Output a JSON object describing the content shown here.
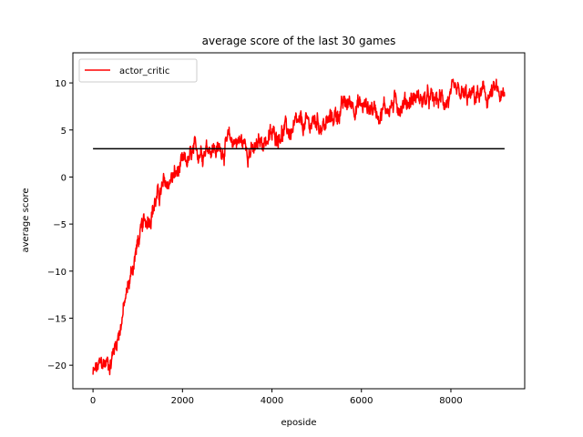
{
  "chart_data": {
    "type": "line",
    "title": "average score of the last 30 games",
    "xlabel": "eposide",
    "ylabel": "average score",
    "xlim": [
      -450,
      9650
    ],
    "ylim": [
      -22.5,
      13.2
    ],
    "xticks": [
      0,
      2000,
      4000,
      6000,
      8000
    ],
    "yticks": [
      -20,
      -15,
      -10,
      -5,
      0,
      5,
      10
    ],
    "grid": false,
    "legend": {
      "placement": "top-left",
      "entries": [
        "actor_critic"
      ]
    },
    "series": [
      {
        "name": "actor_critic",
        "color": "#ff0000",
        "noise": 1.0,
        "x": [
          0,
          200,
          400,
          600,
          800,
          1000,
          1200,
          1400,
          1600,
          1800,
          2000,
          2200,
          2400,
          2600,
          2800,
          3000,
          3200,
          3400,
          3600,
          3800,
          4000,
          4200,
          4400,
          4600,
          4800,
          5000,
          5200,
          5400,
          5600,
          5800,
          6000,
          6200,
          6400,
          6600,
          6800,
          7000,
          7200,
          7400,
          7600,
          7800,
          8000,
          8200,
          8400,
          8600,
          8800,
          9000,
          9200
        ],
        "y": [
          -21,
          -20,
          -19.5,
          -16,
          -11.5,
          -7,
          -4.5,
          -2.5,
          -1,
          0,
          1,
          2,
          3,
          3.5,
          2.8,
          3.5,
          4,
          3.5,
          2.5,
          4,
          4.2,
          5,
          4.8,
          5.2,
          5.5,
          6,
          5.5,
          6.5,
          7.5,
          8,
          7.5,
          7.5,
          7,
          7.5,
          7.8,
          8,
          8.5,
          8.2,
          8,
          8.2,
          8.3,
          8.5,
          8.3,
          8.7,
          8.5,
          9,
          8
        ]
      },
      {
        "name": "",
        "color": "#000000",
        "noise": 0,
        "x": [
          0,
          9200
        ],
        "y": [
          3,
          3
        ]
      }
    ]
  }
}
